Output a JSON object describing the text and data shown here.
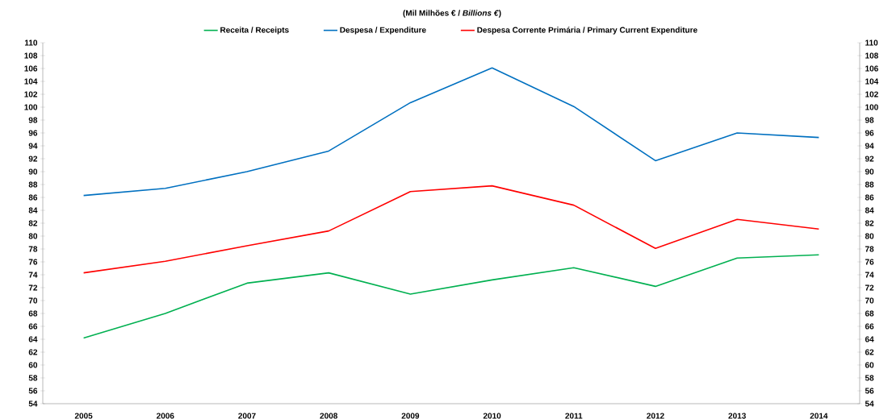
{
  "chart_data": {
    "type": "line",
    "title": "(Mil Milhões € / *Billions €*)",
    "categories": [
      "2005",
      "2006",
      "2007",
      "2008",
      "2009",
      "2010",
      "2011",
      "2012",
      "2013",
      "2014"
    ],
    "series": [
      {
        "name": "Receita / Receipts",
        "color": "#00b050",
        "values": [
          64.2,
          68.0,
          72.7,
          74.3,
          71.0,
          73.2,
          75.1,
          72.2,
          76.6,
          77.1
        ]
      },
      {
        "name": "Despesa / Expenditure",
        "color": "#0070c0",
        "values": [
          86.3,
          87.4,
          90.0,
          93.2,
          100.7,
          106.1,
          100.1,
          91.7,
          96.0,
          95.3
        ]
      },
      {
        "name": "Despesa Corrente Primária / Primary Current Expenditure",
        "color": "#ff0000",
        "values": [
          74.3,
          76.1,
          78.5,
          80.8,
          86.9,
          87.8,
          84.8,
          78.1,
          82.6,
          81.1
        ]
      }
    ],
    "ylim": [
      54,
      110
    ],
    "yticks": [
      54,
      56,
      58,
      60,
      62,
      64,
      66,
      68,
      70,
      72,
      74,
      76,
      78,
      80,
      82,
      84,
      86,
      88,
      90,
      92,
      94,
      96,
      98,
      100,
      102,
      104,
      106,
      108,
      110
    ],
    "y2lim": [
      54,
      110
    ],
    "y2ticks": [
      54,
      56,
      58,
      60,
      62,
      64,
      66,
      68,
      70,
      72,
      74,
      76,
      78,
      80,
      82,
      84,
      86,
      88,
      90,
      92,
      94,
      96,
      98,
      100,
      102,
      104,
      106,
      108,
      110
    ],
    "legend": "top",
    "line_style": "solid"
  }
}
